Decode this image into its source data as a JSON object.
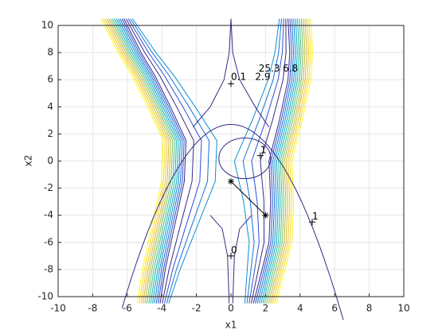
{
  "chart_data": {
    "type": "contour",
    "x_label": "x1",
    "y_label": "x2",
    "xlim": [
      -10,
      10
    ],
    "ylim": [
      -10,
      10
    ],
    "xticks": [
      -10,
      -8,
      -6,
      -4,
      -2,
      0,
      2,
      4,
      6,
      8,
      10
    ],
    "yticks": [
      -10,
      -8,
      -6,
      -4,
      -2,
      0,
      2,
      4,
      6,
      8,
      10
    ],
    "grid": true,
    "path": {
      "x": [
        0,
        2
      ],
      "y": [
        -1.5,
        -4
      ],
      "marker": "*",
      "color": "#000000"
    },
    "points": {
      "x": [
        0,
        1.7,
        4.7,
        0
      ],
      "y": [
        5.7,
        0.4,
        -4.5,
        -7
      ],
      "marker": "+",
      "color": "#000000"
    },
    "annotations": [
      {
        "text": "0.1",
        "x": 0,
        "y": 6.2
      },
      {
        "text": "2.9",
        "x": 1.4,
        "y": 6.2
      },
      {
        "text": "25.3",
        "x": 1.6,
        "y": 6.8
      },
      {
        "text": "6.8",
        "x": 3.0,
        "y": 6.8
      },
      {
        "text": "1",
        "x": 1.7,
        "y": 0.8
      },
      {
        "text": "1",
        "x": 4.7,
        "y": -4.1
      },
      {
        "text": "0",
        "x": 0,
        "y": -6.6
      }
    ]
  }
}
